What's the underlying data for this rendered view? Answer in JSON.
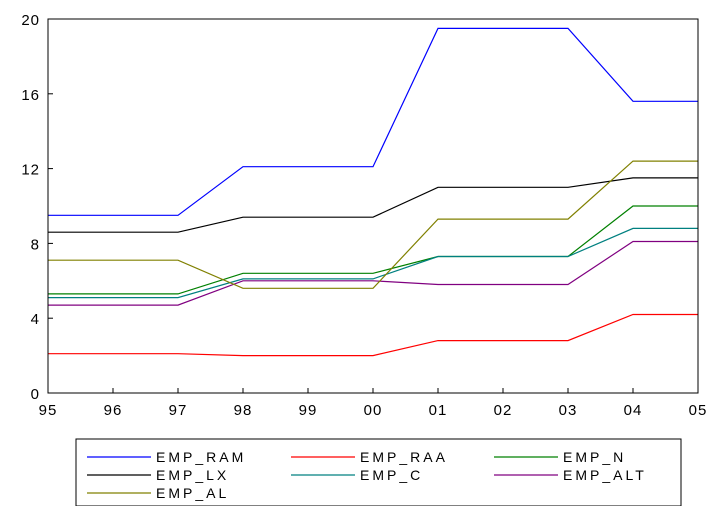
{
  "chart_data": {
    "type": "line",
    "x": [
      "95",
      "96",
      "97",
      "98",
      "99",
      "00",
      "01",
      "02",
      "03",
      "04",
      "05"
    ],
    "ylim": [
      0,
      20
    ],
    "yticks": [
      "0",
      "4",
      "8",
      "12",
      "16",
      "20"
    ],
    "grid": false,
    "legend_position": "bottom",
    "series": [
      {
        "name": "EMP_RAM",
        "color": "#0000ff",
        "values": [
          9.5,
          9.5,
          9.5,
          12.1,
          12.1,
          12.1,
          19.5,
          19.5,
          19.5,
          15.6,
          15.6
        ]
      },
      {
        "name": "EMP_RAA",
        "color": "#ff0000",
        "values": [
          2.1,
          2.1,
          2.1,
          2.0,
          2.0,
          2.0,
          2.8,
          2.8,
          2.8,
          4.2,
          4.2
        ]
      },
      {
        "name": "EMP_N",
        "color": "#008000",
        "values": [
          5.3,
          5.3,
          5.3,
          6.4,
          6.4,
          6.4,
          7.3,
          7.3,
          7.3,
          10.0,
          10.0
        ]
      },
      {
        "name": "EMP_LX",
        "color": "#000000",
        "values": [
          8.6,
          8.6,
          8.6,
          9.4,
          9.4,
          9.4,
          11.0,
          11.0,
          11.0,
          11.5,
          11.5
        ]
      },
      {
        "name": "EMP_C",
        "color": "#008080",
        "values": [
          5.1,
          5.1,
          5.1,
          6.1,
          6.1,
          6.1,
          7.3,
          7.3,
          7.3,
          8.8,
          8.8
        ]
      },
      {
        "name": "EMP_ALT",
        "color": "#800080",
        "values": [
          4.7,
          4.7,
          4.7,
          6.0,
          6.0,
          6.0,
          5.8,
          5.8,
          5.8,
          8.1,
          8.1
        ]
      },
      {
        "name": "EMP_AL",
        "color": "#808000",
        "values": [
          7.1,
          7.1,
          7.1,
          5.6,
          5.6,
          5.6,
          9.3,
          9.3,
          9.3,
          12.4,
          12.4
        ]
      }
    ]
  }
}
